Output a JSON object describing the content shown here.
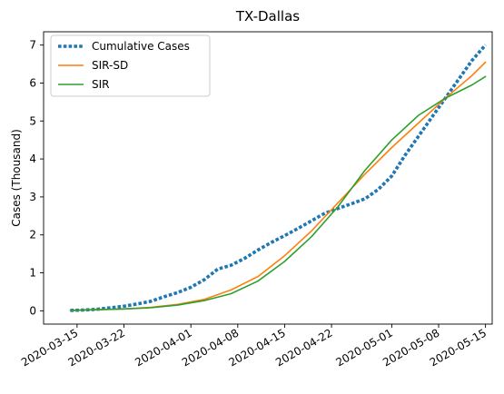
{
  "chart_data": {
    "type": "line",
    "title": "TX-Dallas",
    "xlabel": "",
    "ylabel": "Cases (Thousand)",
    "x_ticks": [
      "2020-03-15",
      "2020-03-22",
      "2020-04-01",
      "2020-04-08",
      "2020-04-15",
      "2020-04-22",
      "2020-05-01",
      "2020-05-08",
      "2020-05-15"
    ],
    "y_ticks": [
      "0",
      "1",
      "2",
      "3",
      "4",
      "5",
      "6",
      "7"
    ],
    "xlim": [
      "2020-03-10",
      "2020-05-16"
    ],
    "ylim": [
      -0.35,
      7.35
    ],
    "grid": false,
    "legend_position": "upper-left",
    "series": [
      {
        "name": "Cumulative Cases",
        "color": "#1f77b4",
        "style": "dotted",
        "x": [
          "2020-03-14",
          "2020-03-16",
          "2020-03-18",
          "2020-03-20",
          "2020-03-22",
          "2020-03-24",
          "2020-03-26",
          "2020-03-28",
          "2020-03-30",
          "2020-04-01",
          "2020-04-03",
          "2020-04-05",
          "2020-04-07",
          "2020-04-09",
          "2020-04-11",
          "2020-04-13",
          "2020-04-15",
          "2020-04-17",
          "2020-04-19",
          "2020-04-21",
          "2020-04-23",
          "2020-04-25",
          "2020-04-27",
          "2020-04-29",
          "2020-05-01",
          "2020-05-03",
          "2020-05-05",
          "2020-05-07",
          "2020-05-09",
          "2020-05-11",
          "2020-05-13",
          "2020-05-15"
        ],
        "values": [
          0.01,
          0.02,
          0.04,
          0.08,
          0.12,
          0.18,
          0.25,
          0.37,
          0.48,
          0.62,
          0.82,
          1.1,
          1.2,
          1.38,
          1.6,
          1.8,
          1.98,
          2.17,
          2.37,
          2.57,
          2.7,
          2.82,
          2.95,
          3.2,
          3.55,
          4.1,
          4.6,
          5.1,
          5.6,
          6.1,
          6.6,
          7.0
        ]
      },
      {
        "name": "SIR-SD",
        "color": "#ff7f0e",
        "style": "solid",
        "x": [
          "2020-03-14",
          "2020-03-18",
          "2020-03-22",
          "2020-03-26",
          "2020-03-30",
          "2020-04-03",
          "2020-04-07",
          "2020-04-11",
          "2020-04-15",
          "2020-04-19",
          "2020-04-23",
          "2020-04-27",
          "2020-05-01",
          "2020-05-05",
          "2020-05-09",
          "2020-05-13",
          "2020-05-15"
        ],
        "values": [
          0.01,
          0.03,
          0.05,
          0.09,
          0.17,
          0.3,
          0.55,
          0.9,
          1.45,
          2.1,
          2.85,
          3.6,
          4.3,
          4.95,
          5.6,
          6.2,
          6.55
        ]
      },
      {
        "name": "SIR",
        "color": "#2ca02c",
        "style": "solid",
        "x": [
          "2020-03-14",
          "2020-03-18",
          "2020-03-22",
          "2020-03-26",
          "2020-03-30",
          "2020-04-03",
          "2020-04-07",
          "2020-04-11",
          "2020-04-15",
          "2020-04-19",
          "2020-04-23",
          "2020-04-27",
          "2020-05-01",
          "2020-05-05",
          "2020-05-09",
          "2020-05-13",
          "2020-05-15"
        ],
        "values": [
          0.01,
          0.03,
          0.05,
          0.08,
          0.15,
          0.27,
          0.45,
          0.78,
          1.3,
          1.95,
          2.75,
          3.7,
          4.5,
          5.15,
          5.6,
          5.95,
          6.17
        ]
      }
    ]
  }
}
